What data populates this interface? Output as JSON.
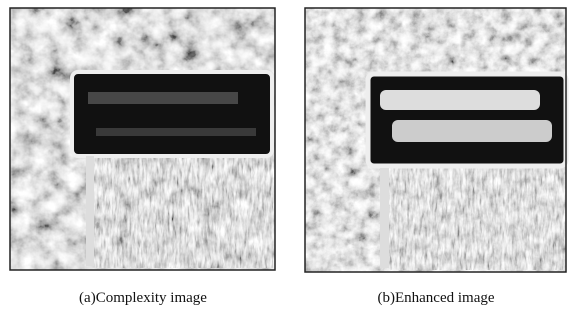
{
  "figure": {
    "panels": [
      {
        "caption": "(a)Complexity image"
      },
      {
        "caption": "(b)Enhanced image"
      }
    ]
  }
}
